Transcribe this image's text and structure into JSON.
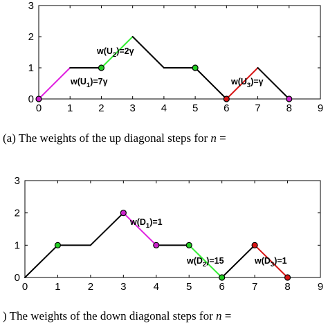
{
  "chart_data": [
    {
      "type": "line",
      "xlim": [
        0,
        9
      ],
      "ylim": [
        0,
        3
      ],
      "xticks": [
        "0",
        "1",
        "2",
        "3",
        "4",
        "5",
        "6",
        "7",
        "8",
        "9"
      ],
      "yticks": [
        "0",
        "1",
        "2",
        "3"
      ],
      "grid": false,
      "path": [
        [
          0,
          0
        ],
        [
          1,
          1
        ],
        [
          2,
          1
        ],
        [
          3,
          2
        ],
        [
          4,
          1
        ],
        [
          5,
          1
        ],
        [
          6,
          0
        ],
        [
          7,
          1
        ],
        [
          8,
          0
        ]
      ],
      "highlighted_steps": [
        {
          "from": [
            0,
            0
          ],
          "to": [
            1,
            1
          ],
          "color": "#e020e0",
          "label_main": "w(U",
          "label_sub": "1",
          "label_tail": ")=7γ"
        },
        {
          "from": [
            2,
            1
          ],
          "to": [
            3,
            2
          ],
          "color": "#33ee33",
          "label_main": "w(U",
          "label_sub": "2",
          "label_tail": ")=2γ"
        },
        {
          "from": [
            6,
            0
          ],
          "to": [
            7,
            1
          ],
          "color": "#d81414",
          "label_main": "w(U",
          "label_sub": "3",
          "label_tail": ")=γ"
        }
      ],
      "markers": [
        {
          "x": 0,
          "y": 0,
          "color": "#cc22cc"
        },
        {
          "x": 2,
          "y": 1,
          "color": "#22cc22"
        },
        {
          "x": 5,
          "y": 1,
          "color": "#22cc22"
        },
        {
          "x": 6,
          "y": 0,
          "color": "#d81414"
        },
        {
          "x": 8,
          "y": 0,
          "color": "#cc22cc"
        }
      ],
      "caption": {
        "prefix": "(a)  The weights of the up diagonal steps for ",
        "var": "n",
        "suffix": " ="
      }
    },
    {
      "type": "line",
      "xlim": [
        0,
        9
      ],
      "ylim": [
        0,
        3
      ],
      "xticks": [
        "0",
        "1",
        "2",
        "3",
        "4",
        "5",
        "6",
        "7",
        "8",
        "9"
      ],
      "yticks": [
        "0",
        "1",
        "2",
        "3"
      ],
      "grid": false,
      "path": [
        [
          0,
          0
        ],
        [
          1,
          1
        ],
        [
          2,
          1
        ],
        [
          3,
          2
        ],
        [
          4,
          1
        ],
        [
          5,
          1
        ],
        [
          6,
          0
        ],
        [
          7,
          1
        ],
        [
          8,
          0
        ]
      ],
      "highlighted_steps": [
        {
          "from": [
            3,
            2
          ],
          "to": [
            4,
            1
          ],
          "color": "#e020e0",
          "label_main": "w(D",
          "label_sub": "1",
          "label_tail": ")=1"
        },
        {
          "from": [
            5,
            1
          ],
          "to": [
            6,
            0
          ],
          "color": "#33ee33",
          "label_main": "w(D",
          "label_sub": "2",
          "label_tail": ")=15"
        },
        {
          "from": [
            7,
            1
          ],
          "to": [
            8,
            0
          ],
          "color": "#d81414",
          "label_main": "w(D",
          "label_sub": "3",
          "label_tail": ")=1"
        }
      ],
      "markers": [
        {
          "x": 1,
          "y": 1,
          "color": "#22cc22"
        },
        {
          "x": 3,
          "y": 2,
          "color": "#cc22cc"
        },
        {
          "x": 4,
          "y": 1,
          "color": "#cc22cc"
        },
        {
          "x": 5,
          "y": 1,
          "color": "#22cc22"
        },
        {
          "x": 6,
          "y": 0,
          "color": "#22cc22"
        },
        {
          "x": 7,
          "y": 1,
          "color": "#d81414"
        },
        {
          "x": 8,
          "y": 0,
          "color": "#d81414"
        }
      ],
      "caption": {
        "prefix": ") The weights of the down diagonal steps for ",
        "var": "n",
        "suffix": " ="
      }
    }
  ]
}
